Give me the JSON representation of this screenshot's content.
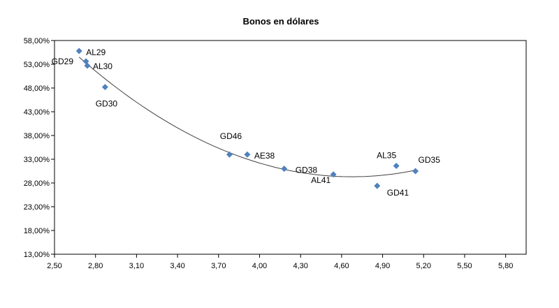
{
  "chart_data": {
    "type": "scatter",
    "title": "Bonos  en dólares",
    "xlabel": "",
    "ylabel": "",
    "xlim": [
      2.5,
      5.95
    ],
    "ylim": [
      13,
      58
    ],
    "xticks": [
      {
        "value": 2.5,
        "label": "2,50"
      },
      {
        "value": 2.8,
        "label": "2,80"
      },
      {
        "value": 3.1,
        "label": "3,10"
      },
      {
        "value": 3.4,
        "label": "3,40"
      },
      {
        "value": 3.7,
        "label": "3,70"
      },
      {
        "value": 4.0,
        "label": "4,00"
      },
      {
        "value": 4.3,
        "label": "4,30"
      },
      {
        "value": 4.6,
        "label": "4,60"
      },
      {
        "value": 4.9,
        "label": "4,90"
      },
      {
        "value": 5.2,
        "label": "5,20"
      },
      {
        "value": 5.5,
        "label": "5,50"
      },
      {
        "value": 5.8,
        "label": "5,80"
      }
    ],
    "yticks": [
      {
        "value": 58,
        "label": "58,00%"
      },
      {
        "value": 53,
        "label": "53,00%"
      },
      {
        "value": 48,
        "label": "48,00%"
      },
      {
        "value": 43,
        "label": "43,00%"
      },
      {
        "value": 38,
        "label": "38,00%"
      },
      {
        "value": 33,
        "label": "33,00%"
      },
      {
        "value": 28,
        "label": "28,00%"
      },
      {
        "value": 23,
        "label": "23,00%"
      },
      {
        "value": 18,
        "label": "18,00%"
      },
      {
        "value": 13,
        "label": "13,00%"
      }
    ],
    "points": [
      {
        "label": "AL29",
        "x": 2.68,
        "y": 55.8
      },
      {
        "label": "GD29",
        "x": 2.73,
        "y": 53.6
      },
      {
        "label": "AL30",
        "x": 2.74,
        "y": 52.7
      },
      {
        "label": "GD30",
        "x": 2.87,
        "y": 48.2
      },
      {
        "label": "GD46",
        "x": 3.78,
        "y": 34.0
      },
      {
        "label": "AE38",
        "x": 3.91,
        "y": 34.0
      },
      {
        "label": "GD38",
        "x": 4.18,
        "y": 31.0
      },
      {
        "label": "AL41",
        "x": 4.54,
        "y": 29.8
      },
      {
        "label": "GD41",
        "x": 4.86,
        "y": 27.4
      },
      {
        "label": "AL35",
        "x": 5.0,
        "y": 31.6
      },
      {
        "label": "GD35",
        "x": 5.14,
        "y": 30.5
      }
    ],
    "trendline": {
      "type": "polynomial",
      "x_range": [
        2.68,
        5.14
      ]
    },
    "grid": false,
    "legend": "none",
    "marker_color": "#4F81BD",
    "trend_color": "#404040"
  }
}
